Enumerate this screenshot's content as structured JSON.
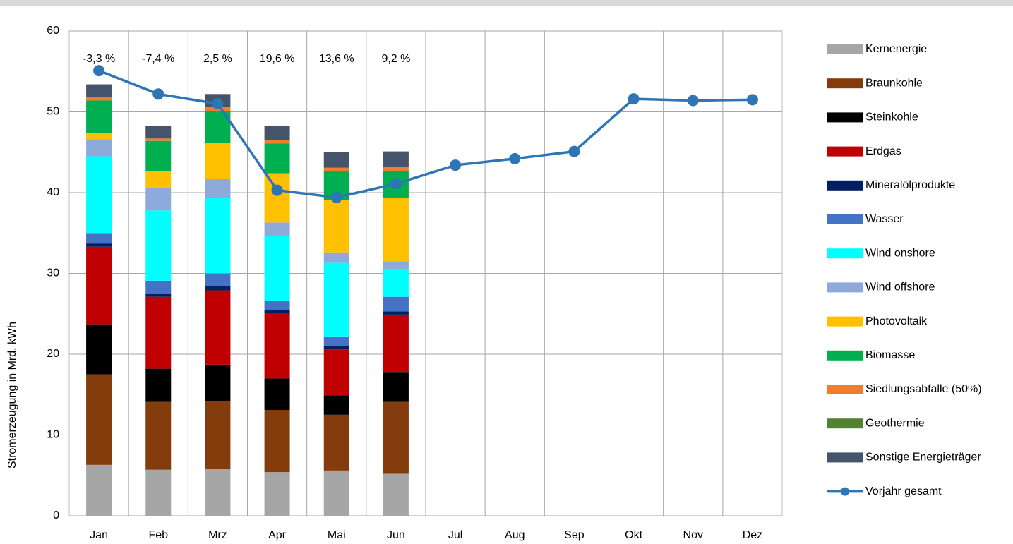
{
  "chart_data": {
    "type": "bar",
    "stacked": true,
    "y_label": "Stromerzeugung  in Mrd. kWh",
    "categories": [
      "Jan",
      "Feb",
      "Mrz",
      "Apr",
      "Mai",
      "Jun",
      "Jul",
      "Aug",
      "Sep",
      "Okt",
      "Nov",
      "Dez"
    ],
    "change_labels": [
      "-3,3 %",
      "-7,4 %",
      "2,5 %",
      "19,6 %",
      "13,6 %",
      "9,2 %"
    ],
    "ylim": [
      0,
      60
    ],
    "yticks": [
      0,
      10,
      20,
      30,
      40,
      50,
      60
    ],
    "grid": true,
    "series": [
      {
        "name": "Kernenergie",
        "color": "#a6a6a6",
        "values": [
          6.3,
          5.7,
          5.85,
          5.4,
          5.6,
          5.2,
          null,
          null,
          null,
          null,
          null,
          null
        ]
      },
      {
        "name": "Braunkohle",
        "color": "#843c0c",
        "values": [
          11.2,
          8.4,
          8.3,
          7.7,
          6.9,
          8.9,
          null,
          null,
          null,
          null,
          null,
          null
        ]
      },
      {
        "name": "Steinkohle",
        "color": "#000000",
        "values": [
          6.2,
          4.1,
          4.55,
          3.9,
          2.4,
          3.7,
          null,
          null,
          null,
          null,
          null,
          null
        ]
      },
      {
        "name": "Erdgas",
        "color": "#c00000",
        "values": [
          9.6,
          8.9,
          9.2,
          8.1,
          5.7,
          7.1,
          null,
          null,
          null,
          null,
          null,
          null
        ]
      },
      {
        "name": "Mineralölprodukte",
        "color": "#002060",
        "values": [
          0.4,
          0.4,
          0.5,
          0.4,
          0.4,
          0.4,
          null,
          null,
          null,
          null,
          null,
          null
        ]
      },
      {
        "name": "Wasser",
        "color": "#4472c4",
        "values": [
          1.3,
          1.6,
          1.6,
          1.1,
          1.2,
          1.8,
          null,
          null,
          null,
          null,
          null,
          null
        ]
      },
      {
        "name": "Wind onshore",
        "color": "#00ffff",
        "values": [
          9.5,
          8.7,
          9.3,
          8.0,
          9.1,
          3.4,
          null,
          null,
          null,
          null,
          null,
          null
        ]
      },
      {
        "name": "Wind offshore",
        "color": "#8eaadb",
        "values": [
          2.1,
          2.8,
          2.4,
          1.7,
          1.3,
          1.0,
          null,
          null,
          null,
          null,
          null,
          null
        ]
      },
      {
        "name": "Photovoltaik",
        "color": "#ffc000",
        "values": [
          0.8,
          2.1,
          4.5,
          6.1,
          6.5,
          7.8,
          null,
          null,
          null,
          null,
          null,
          null
        ]
      },
      {
        "name": "Biomasse",
        "color": "#00b050",
        "values": [
          4.0,
          3.7,
          3.9,
          3.7,
          3.6,
          3.4,
          null,
          null,
          null,
          null,
          null,
          null
        ]
      },
      {
        "name": "Siedlungsabfälle (50%)",
        "color": "#ed7d31",
        "values": [
          0.4,
          0.3,
          0.5,
          0.4,
          0.4,
          0.5,
          null,
          null,
          null,
          null,
          null,
          null
        ]
      },
      {
        "name": "Geothermie",
        "color": "#548235",
        "values": [
          0,
          0,
          0,
          0,
          0,
          0,
          null,
          null,
          null,
          null,
          null,
          null
        ]
      },
      {
        "name": "Sonstige Energieträger",
        "color": "#44546a",
        "values": [
          1.6,
          1.6,
          1.6,
          1.8,
          1.9,
          1.9,
          null,
          null,
          null,
          null,
          null,
          null
        ]
      },
      {
        "name": "Vorjahr gesamt",
        "color": "#2e75b6",
        "type": "line",
        "values": [
          55.1,
          52.2,
          51.0,
          40.3,
          39.4,
          41.1,
          43.4,
          44.2,
          45.1,
          51.6,
          51.4,
          51.5
        ]
      }
    ]
  }
}
